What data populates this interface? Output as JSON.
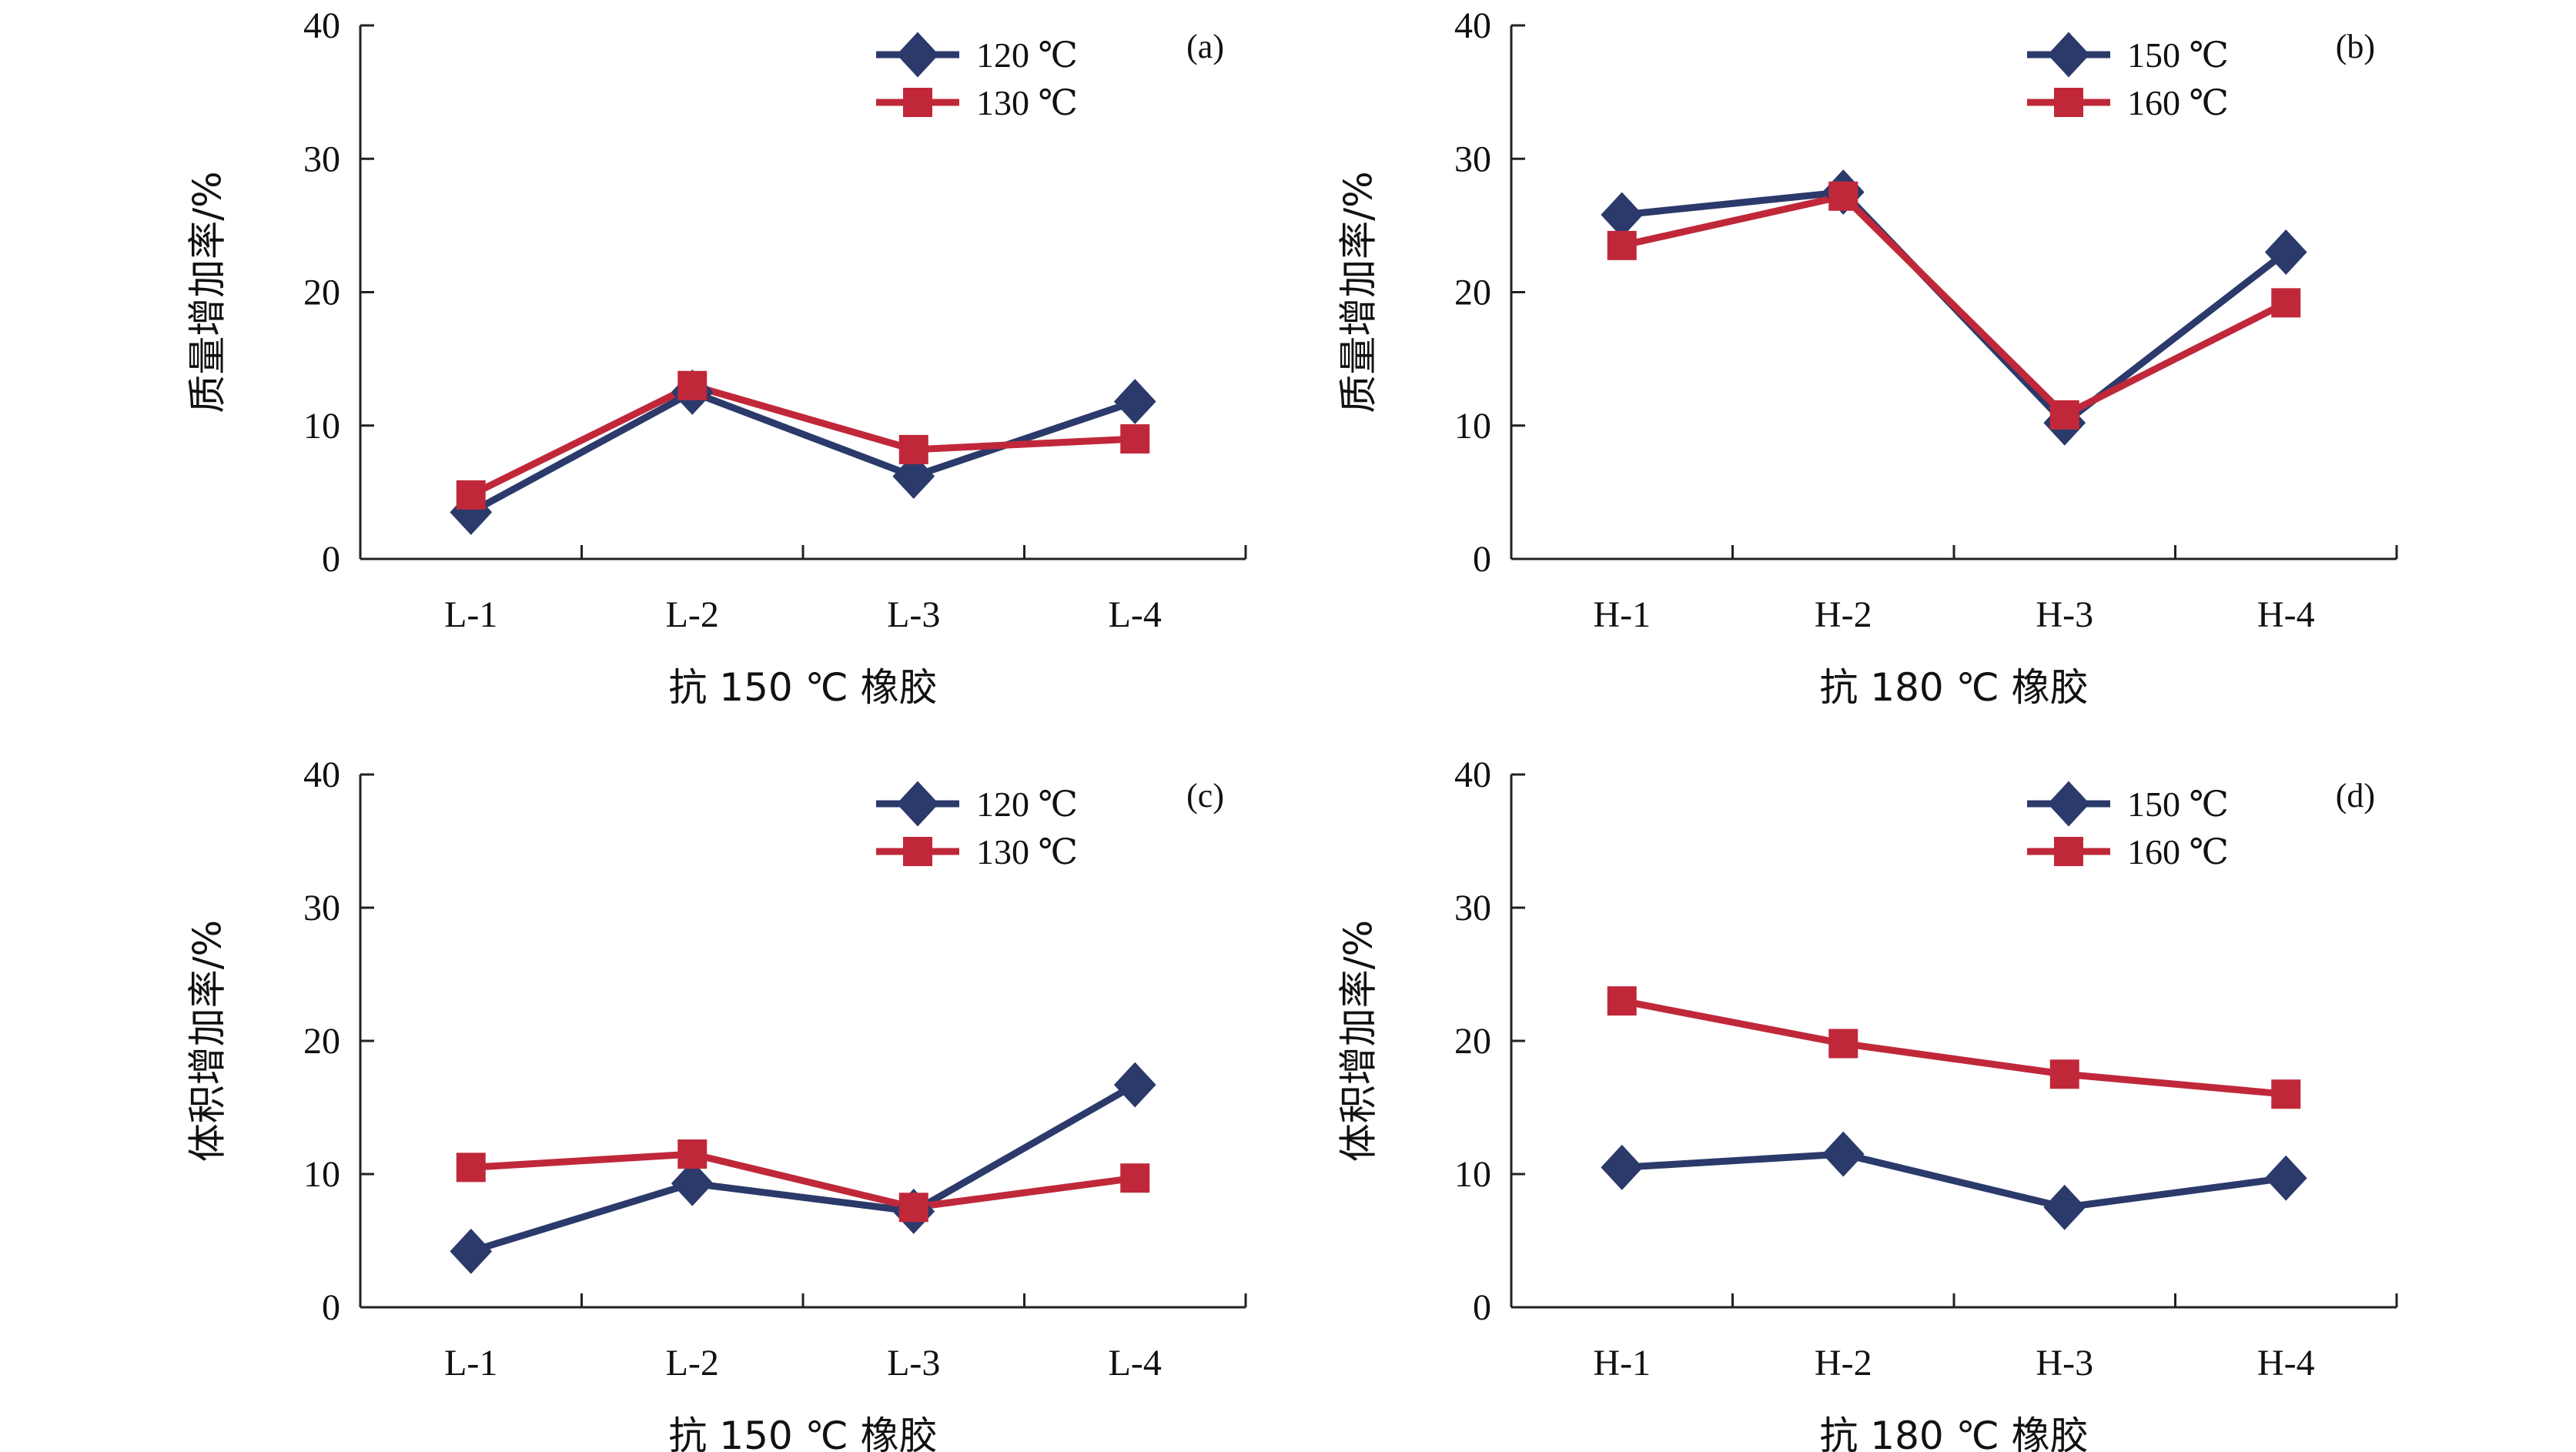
{
  "chart_data": [
    {
      "type": "line",
      "panel_label": "(a)",
      "categories": [
        "L-1",
        "L-2",
        "L-3",
        "L-4"
      ],
      "series": [
        {
          "name": "120 ℃",
          "marker": "diamond",
          "color": "#2b3a6b",
          "values": [
            3.5,
            12.5,
            6.2,
            11.8
          ]
        },
        {
          "name": "130 ℃",
          "marker": "square",
          "color": "#c0283a",
          "values": [
            4.8,
            13.0,
            8.2,
            9.0
          ]
        }
      ],
      "title": "",
      "xlabel": "抗 150 ℃ 橡胶",
      "ylabel": "质量增加率/%",
      "ylim": [
        0,
        40
      ],
      "yticks": [
        "0",
        "10",
        "20",
        "30",
        "40"
      ],
      "grid": false,
      "legend": "top-right"
    },
    {
      "type": "line",
      "panel_label": "(b)",
      "categories": [
        "H-1",
        "H-2",
        "H-3",
        "H-4"
      ],
      "series": [
        {
          "name": "150 ℃",
          "marker": "diamond",
          "color": "#2b3a6b",
          "values": [
            25.8,
            27.5,
            10.2,
            23.0
          ]
        },
        {
          "name": "160 ℃",
          "marker": "square",
          "color": "#c0283a",
          "values": [
            23.5,
            27.2,
            10.8,
            19.2
          ]
        }
      ],
      "title": "",
      "xlabel": "抗 180 ℃ 橡胶",
      "ylabel": "质量增加率/%",
      "ylim": [
        0,
        40
      ],
      "yticks": [
        "0",
        "10",
        "20",
        "30",
        "40"
      ],
      "grid": false,
      "legend": "top-right"
    },
    {
      "type": "line",
      "panel_label": "(c)",
      "categories": [
        "L-1",
        "L-2",
        "L-3",
        "L-4"
      ],
      "series": [
        {
          "name": "120 ℃",
          "marker": "diamond",
          "color": "#2b3a6b",
          "values": [
            4.2,
            9.3,
            7.2,
            16.7
          ]
        },
        {
          "name": "130 ℃",
          "marker": "square",
          "color": "#c0283a",
          "values": [
            10.5,
            11.5,
            7.5,
            9.7
          ]
        }
      ],
      "title": "",
      "xlabel": "抗 150 ℃ 橡胶",
      "ylabel": "体积增加率/%",
      "ylim": [
        0,
        40
      ],
      "yticks": [
        "0",
        "10",
        "20",
        "30",
        "40"
      ],
      "grid": false,
      "legend": "top-right"
    },
    {
      "type": "line",
      "panel_label": "(d)",
      "categories": [
        "H-1",
        "H-2",
        "H-3",
        "H-4"
      ],
      "series": [
        {
          "name": "150 ℃",
          "marker": "diamond",
          "color": "#2b3a6b",
          "values": [
            10.5,
            11.5,
            7.5,
            9.7
          ]
        },
        {
          "name": "160 ℃",
          "marker": "square",
          "color": "#c0283a",
          "values": [
            23.0,
            19.8,
            17.5,
            16.0
          ]
        }
      ],
      "title": "",
      "xlabel": "抗 180 ℃ 橡胶",
      "ylabel": "体积增加率/%",
      "ylim": [
        0,
        40
      ],
      "yticks": [
        "0",
        "10",
        "20",
        "30",
        "40"
      ],
      "grid": false,
      "legend": "top-right"
    }
  ]
}
